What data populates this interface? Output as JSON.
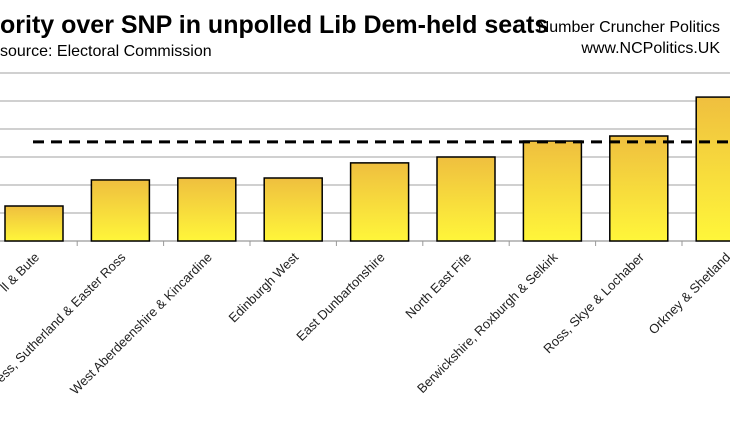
{
  "chart_data": {
    "type": "bar",
    "title": "ority over SNP in unpolled Lib Dem-held seats",
    "subtitle": "source: Electoral Commission",
    "credit": [
      "Number Cruncher Politics",
      "www.NCPolitics.UK"
    ],
    "categories": [
      "ll & Bute",
      "ess, Sutherland & Easter Ross",
      "West Aberdeenshire & Kincardine",
      "Edinburgh West",
      "East Dunbartonshire",
      "North East Fife",
      "Berwickshire, Roxburgh & Selkirk",
      "Ross, Skye & Lochaber",
      "Orkney & Shetland"
    ],
    "values": [
      1.25,
      2.18,
      2.25,
      2.25,
      2.79,
      3.0,
      3.57,
      3.75,
      5.14
    ],
    "reference_line": {
      "value": 3.54,
      "style": "dashed",
      "color": "#000000"
    },
    "ylim": [
      0,
      6
    ],
    "gridlines": [
      1,
      2,
      3,
      4,
      5,
      6
    ],
    "grid": true,
    "y_tick_labels_visible": false,
    "xlabel": "",
    "ylabel": "",
    "colors": {
      "bar_top": "#efbf3f",
      "bar_bottom": "#fff63a",
      "bar_outline": "#000000",
      "grid": "#b5b5b5"
    }
  }
}
